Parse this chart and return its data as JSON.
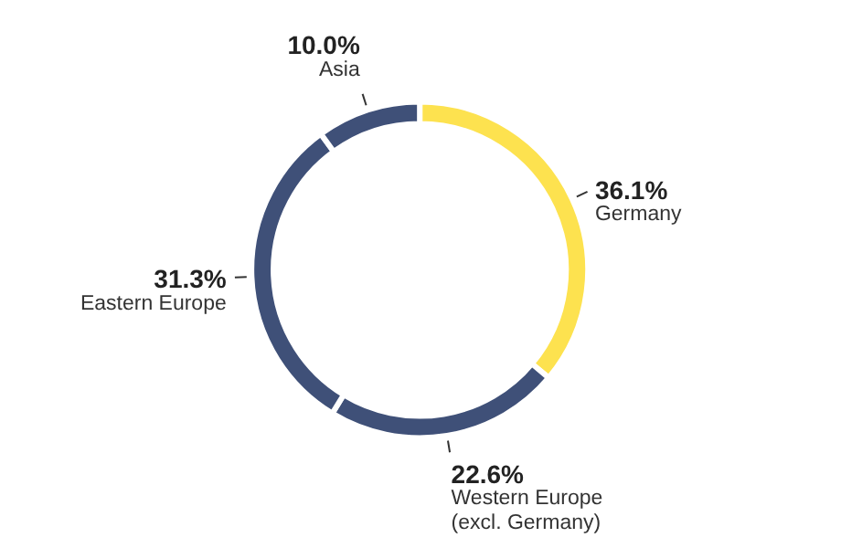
{
  "chart_data": {
    "type": "donut",
    "categories": [
      "Germany",
      "Western Europe\n(excl. Germany)",
      "Eastern Europe",
      "Asia"
    ],
    "values": [
      36.1,
      22.6,
      31.3,
      10.0
    ],
    "value_labels": [
      "36.1%",
      "22.6%",
      "31.3%",
      "10.0%"
    ],
    "colors": [
      "#fde24f",
      "#3f5078",
      "#3f5078",
      "#3f5078"
    ]
  }
}
